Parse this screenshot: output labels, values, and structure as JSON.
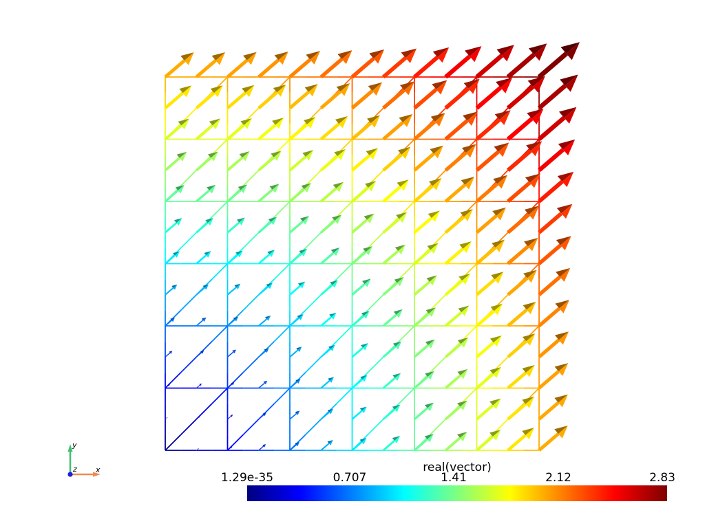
{
  "plot": {
    "mesh_size": 6,
    "field": "vector (x, y)",
    "colormap": "jet",
    "arrow_scale": "proportional to magnitude"
  },
  "colorbar": {
    "title": "real(vector)",
    "ticks": [
      "1.29e-35",
      "0.707",
      "1.41",
      "2.12",
      "2.83"
    ],
    "min": 1.29e-35,
    "max": 2.83
  },
  "axes_widget": {
    "x_label": "x",
    "y_label": "y",
    "z_label": "z",
    "x_color": "#f08a52",
    "y_color": "#3fbf70",
    "z_color": "#1f1fe0"
  }
}
